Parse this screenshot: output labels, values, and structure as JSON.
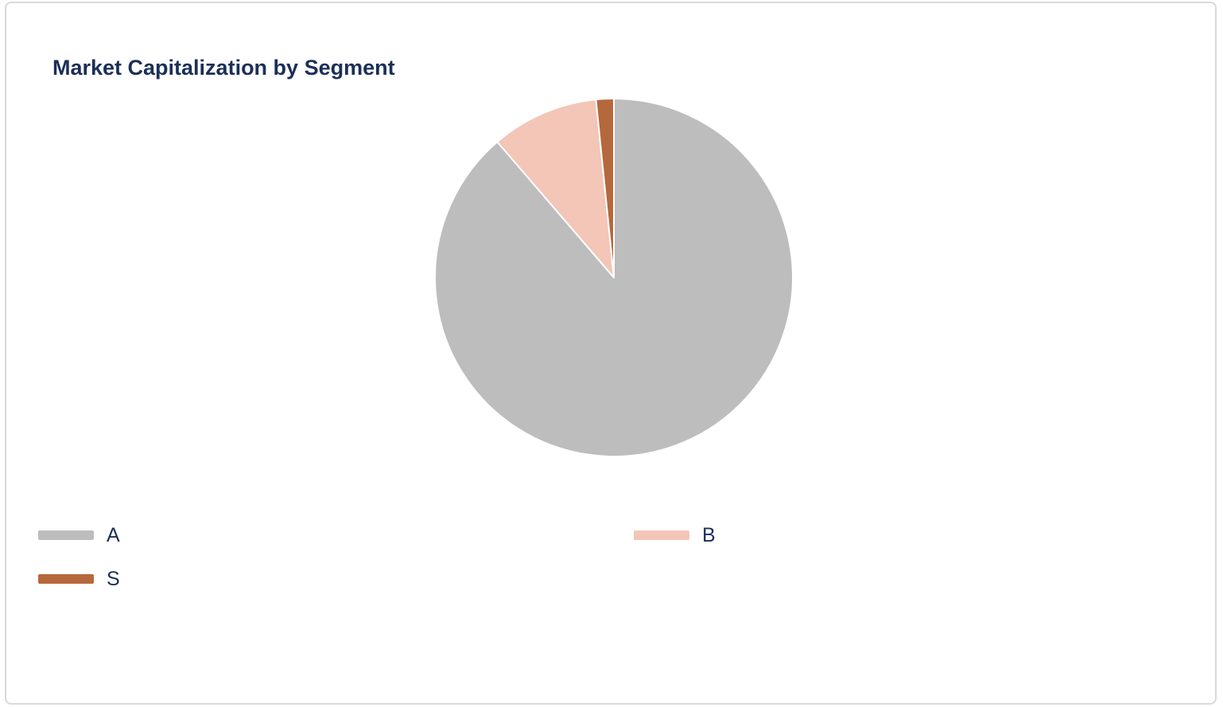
{
  "chart_data": {
    "type": "pie",
    "title": "Market Capitalization by Segment",
    "categories": [
      "A",
      "B",
      "S"
    ],
    "values": [
      88.7,
      9.7,
      1.6
    ],
    "colors": [
      "#bdbdbd",
      "#f3c6b7",
      "#b5683b"
    ],
    "slice_border_color": "#ffffff",
    "start_angle_deg": 0,
    "direction": "clockwise",
    "legend": {
      "position": "bottom",
      "columns": 2
    }
  }
}
